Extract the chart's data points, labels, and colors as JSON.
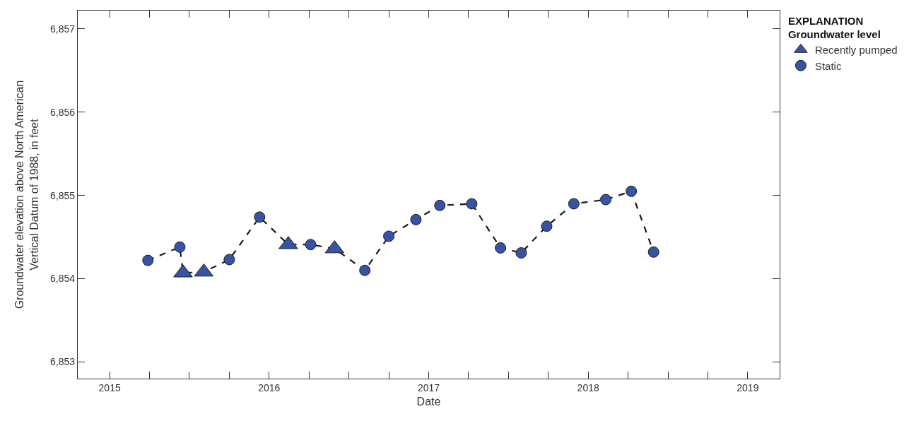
{
  "chart_data": {
    "type": "scatter",
    "xlabel": "Date",
    "ylabel": "Groundwater elevation above North American\nVertical Datum of 1988, in feet",
    "legend_title": "EXPLANATION\nGroundwater level",
    "legend": "top right",
    "xlim": [
      2014.8,
      2019.2
    ],
    "xticks": [
      2015,
      {
        "value": 2015.25,
        "label": null
      },
      {
        "value": 2015.5,
        "label": null
      },
      {
        "value": 2015.75,
        "label": null
      },
      2016,
      {
        "value": 2016.25,
        "label": null
      },
      {
        "value": 2016.5,
        "label": null
      },
      {
        "value": 2016.75,
        "label": null
      },
      2017,
      {
        "value": 2017.25,
        "label": null
      },
      {
        "value": 2017.5,
        "label": null
      },
      {
        "value": 2017.75,
        "label": null
      },
      2018,
      {
        "value": 2018.25,
        "label": null
      },
      {
        "value": 2018.5,
        "label": null
      },
      {
        "value": 2018.75,
        "label": null
      },
      2019
    ],
    "ylim": [
      6852.8,
      6857.22
    ],
    "yticks": [
      {
        "value": 6853,
        "label": "6,853"
      },
      {
        "value": 6854,
        "label": "6,854"
      },
      {
        "value": 6855,
        "label": "6,855"
      },
      {
        "value": 6856,
        "label": "6,856"
      },
      {
        "value": 6857,
        "label": "6,857"
      }
    ],
    "series": [
      {
        "type": "line",
        "color": "#1a1a1a",
        "line_style": "dashed",
        "marker": "none",
        "x": [
          2015.24,
          2015.44,
          2015.46,
          2015.59,
          2015.75,
          2015.94,
          2016.12,
          2016.26,
          2016.41,
          2016.6,
          2016.75,
          2016.92,
          2017.07,
          2017.27,
          2017.45,
          2017.58,
          2017.74,
          2017.91,
          2018.11,
          2018.27,
          2018.41
        ],
        "values": [
          6854.22,
          6854.38,
          6854.07,
          6854.08,
          6854.23,
          6854.74,
          6854.41,
          6854.41,
          6854.36,
          6854.1,
          6854.51,
          6854.71,
          6854.88,
          6854.9,
          6854.37,
          6854.31,
          6854.63,
          6854.9,
          6854.95,
          6855.05,
          6854.32
        ]
      },
      {
        "name": "Recently pumped",
        "color": "#3953a4",
        "marker": "triangle",
        "x": [
          2015.46,
          2015.59,
          2016.12,
          2016.41
        ],
        "values": [
          6854.07,
          6854.08,
          6854.41,
          6854.36
        ]
      },
      {
        "name": "Static",
        "color": "#3953a4",
        "marker": "circle",
        "x": [
          2015.24,
          2015.44,
          2015.75,
          2015.94,
          2016.26,
          2016.6,
          2016.75,
          2016.92,
          2017.07,
          2017.27,
          2017.45,
          2017.58,
          2017.74,
          2017.91,
          2018.11,
          2018.27,
          2018.41
        ],
        "values": [
          6854.22,
          6854.38,
          6854.23,
          6854.74,
          6854.41,
          6854.1,
          6854.51,
          6854.71,
          6854.88,
          6854.9,
          6854.37,
          6854.31,
          6854.63,
          6854.9,
          6854.95,
          6855.05,
          6854.32
        ]
      }
    ]
  }
}
